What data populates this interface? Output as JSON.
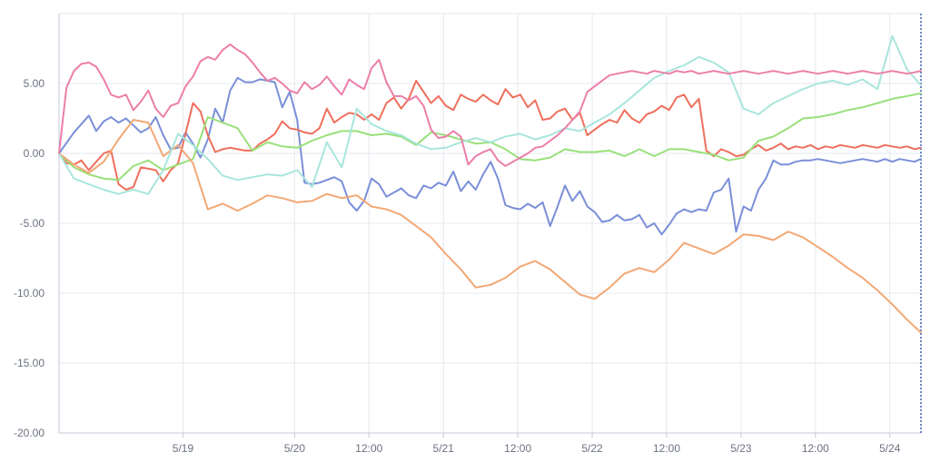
{
  "chart_data": {
    "type": "line",
    "title": "",
    "xlabel": "",
    "ylabel": "",
    "ylim": [
      -20,
      10
    ],
    "y_ticks": [
      "5.00",
      "0.00",
      "-5.00",
      "-10.00",
      "-15.00",
      "-20.00"
    ],
    "y_tick_values": [
      5,
      0,
      -5,
      -10,
      -15,
      -20
    ],
    "x_tick_labels": [
      "5/19",
      "5/20",
      "12:00",
      "5/21",
      "12:00",
      "5/22",
      "12:00",
      "5/23",
      "12:00",
      "5/24"
    ],
    "x_tick_values": [
      0.833,
      1.583,
      2.083,
      2.583,
      3.083,
      3.583,
      4.083,
      4.583,
      5.083,
      5.583
    ],
    "xlim": [
      0,
      5.792
    ],
    "grid": true,
    "legend": "none",
    "series": [
      {
        "color": "#7a8fd8",
        "x": [
          0,
          0.1,
          0.2,
          0.25,
          0.3,
          0.35,
          0.4,
          0.45,
          0.5,
          0.55,
          0.6,
          0.65,
          0.7,
          0.75,
          0.8,
          0.85,
          0.9,
          0.95,
          1.0,
          1.05,
          1.1,
          1.15,
          1.2,
          1.25,
          1.3,
          1.35,
          1.4,
          1.45,
          1.5,
          1.55,
          1.6,
          1.65,
          1.7,
          1.75,
          1.8,
          1.85,
          1.9,
          1.95,
          2.0,
          2.05,
          2.1,
          2.15,
          2.2,
          2.25,
          2.3,
          2.35,
          2.4,
          2.45,
          2.5,
          2.55,
          2.6,
          2.65,
          2.7,
          2.75,
          2.8,
          2.85,
          2.9,
          2.95,
          3.0,
          3.05,
          3.1,
          3.15,
          3.2,
          3.25,
          3.3,
          3.35,
          3.4,
          3.45,
          3.5,
          3.55,
          3.6,
          3.65,
          3.7,
          3.75,
          3.8,
          3.85,
          3.9,
          3.95,
          4.0,
          4.05,
          4.1,
          4.15,
          4.2,
          4.25,
          4.3,
          4.35,
          4.4,
          4.45,
          4.5,
          4.55,
          4.6,
          4.65,
          4.7,
          4.75,
          4.8,
          4.85,
          4.9,
          4.95,
          5.0,
          5.05,
          5.1,
          5.15,
          5.2,
          5.25,
          5.3,
          5.35,
          5.4,
          5.45,
          5.5,
          5.55,
          5.6,
          5.65,
          5.7,
          5.75,
          5.79
        ],
        "y": [
          0,
          1.5,
          2.7,
          1.6,
          2.3,
          2.6,
          2.2,
          2.5,
          2.0,
          1.5,
          1.8,
          2.6,
          1.3,
          0.3,
          0.4,
          1.5,
          0.7,
          -0.3,
          1.0,
          3.2,
          2.2,
          4.5,
          5.4,
          5.1,
          5.1,
          5.3,
          5.2,
          5.1,
          3.3,
          4.4,
          2.4,
          -2.1,
          -2.2,
          -2.1,
          -1.9,
          -1.7,
          -2.0,
          -3.5,
          -4.1,
          -3.4,
          -1.8,
          -2.2,
          -3.1,
          -2.8,
          -2.5,
          -3.0,
          -3.2,
          -2.3,
          -2.5,
          -2.1,
          -2.3,
          -1.3,
          -2.7,
          -2.0,
          -2.6,
          -1.5,
          -0.6,
          -1.8,
          -3.7,
          -3.9,
          -4.0,
          -3.6,
          -3.9,
          -3.5,
          -5.2,
          -3.8,
          -2.3,
          -3.4,
          -2.7,
          -3.8,
          -4.2,
          -4.9,
          -4.8,
          -4.4,
          -4.8,
          -4.7,
          -4.4,
          -5.3,
          -5.0,
          -5.8,
          -5.1,
          -4.3,
          -4.0,
          -4.2,
          -4.0,
          -4.1,
          -2.8,
          -2.6,
          -1.8,
          -5.6,
          -3.8,
          -4.1,
          -2.6,
          -1.8,
          -0.5,
          -0.8,
          -0.8,
          -0.6,
          -0.5,
          -0.5,
          -0.4,
          -0.5,
          -0.6,
          -0.7,
          -0.6,
          -0.5,
          -0.4,
          -0.5,
          -0.6,
          -0.4,
          -0.6,
          -0.4,
          -0.5,
          -0.6,
          -0.4
        ]
      },
      {
        "color": "#ee6f5c",
        "x": [
          0,
          0.05,
          0.1,
          0.15,
          0.2,
          0.25,
          0.3,
          0.35,
          0.4,
          0.45,
          0.5,
          0.55,
          0.6,
          0.65,
          0.7,
          0.75,
          0.8,
          0.85,
          0.9,
          0.95,
          1.0,
          1.05,
          1.1,
          1.15,
          1.2,
          1.25,
          1.3,
          1.35,
          1.4,
          1.45,
          1.5,
          1.55,
          1.6,
          1.65,
          1.7,
          1.75,
          1.8,
          1.85,
          1.9,
          1.95,
          2.0,
          2.05,
          2.1,
          2.15,
          2.2,
          2.25,
          2.3,
          2.35,
          2.4,
          2.45,
          2.5,
          2.55,
          2.6,
          2.65,
          2.7,
          2.75,
          2.8,
          2.85,
          2.9,
          2.95,
          3.0,
          3.05,
          3.1,
          3.15,
          3.2,
          3.25,
          3.3,
          3.35,
          3.4,
          3.45,
          3.5,
          3.55,
          3.6,
          3.65,
          3.7,
          3.75,
          3.8,
          3.85,
          3.9,
          3.95,
          4.0,
          4.05,
          4.1,
          4.15,
          4.2,
          4.25,
          4.3,
          4.35,
          4.4,
          4.45,
          4.5,
          4.55,
          4.6,
          4.65,
          4.7,
          4.75,
          4.8,
          4.85,
          4.9,
          4.95,
          5.0,
          5.05,
          5.1,
          5.15,
          5.2,
          5.25,
          5.3,
          5.35,
          5.4,
          5.45,
          5.5,
          5.55,
          5.6,
          5.65,
          5.7,
          5.75,
          5.79
        ],
        "y": [
          0,
          -0.7,
          -0.8,
          -0.5,
          -1.2,
          -0.6,
          0.0,
          0.2,
          -2.2,
          -2.6,
          -2.4,
          -1.0,
          -1.1,
          -1.2,
          -2.0,
          -1.2,
          -0.7,
          1.4,
          3.6,
          3.0,
          1.3,
          0.1,
          0.3,
          0.4,
          0.3,
          0.2,
          0.2,
          0.7,
          1.0,
          1.4,
          2.3,
          1.8,
          1.7,
          1.5,
          1.4,
          1.8,
          3.2,
          2.2,
          2.6,
          2.9,
          2.8,
          2.4,
          2.8,
          2.4,
          3.6,
          4.0,
          3.2,
          3.9,
          5.2,
          4.4,
          3.6,
          4.1,
          3.4,
          3.1,
          4.2,
          3.9,
          3.7,
          4.2,
          3.8,
          3.5,
          4.6,
          4.0,
          4.2,
          3.3,
          3.8,
          2.4,
          2.5,
          3.0,
          3.2,
          2.4,
          2.9,
          1.3,
          1.7,
          2.1,
          2.4,
          2.2,
          3.1,
          2.5,
          2.2,
          2.8,
          3.0,
          3.4,
          3.1,
          4.0,
          4.2,
          3.3,
          3.9,
          0.2,
          -0.2,
          0.3,
          0.1,
          -0.2,
          -0.1,
          0.3,
          0.6,
          0.2,
          0.4,
          0.7,
          0.3,
          0.5,
          0.4,
          0.6,
          0.3,
          0.5,
          0.4,
          0.6,
          0.5,
          0.4,
          0.6,
          0.5,
          0.4,
          0.6,
          0.5,
          0.4,
          0.5,
          0.3,
          0.4
        ]
      },
      {
        "color": "#99e07a",
        "x": [
          0,
          0.1,
          0.2,
          0.3,
          0.4,
          0.5,
          0.6,
          0.7,
          0.8,
          0.9,
          1.0,
          1.1,
          1.2,
          1.3,
          1.4,
          1.5,
          1.6,
          1.7,
          1.8,
          1.9,
          2.0,
          2.1,
          2.2,
          2.3,
          2.4,
          2.5,
          2.6,
          2.7,
          2.8,
          2.9,
          3.0,
          3.1,
          3.2,
          3.3,
          3.4,
          3.5,
          3.6,
          3.7,
          3.8,
          3.9,
          4.0,
          4.1,
          4.2,
          4.3,
          4.4,
          4.5,
          4.6,
          4.7,
          4.8,
          4.9,
          5.0,
          5.1,
          5.2,
          5.3,
          5.4,
          5.5,
          5.6,
          5.7,
          5.79
        ],
        "y": [
          0,
          -1.0,
          -1.5,
          -1.8,
          -1.9,
          -0.9,
          -0.5,
          -1.2,
          -0.8,
          -0.4,
          2.6,
          2.2,
          1.8,
          0.2,
          0.8,
          0.5,
          0.4,
          0.9,
          1.3,
          1.6,
          1.6,
          1.3,
          1.4,
          1.2,
          0.6,
          1.5,
          1.3,
          1.0,
          0.7,
          0.8,
          0.3,
          -0.4,
          -0.5,
          -0.3,
          0.3,
          0.1,
          0.1,
          0.2,
          -0.2,
          0.3,
          -0.2,
          0.3,
          0.3,
          0.1,
          -0.1,
          -0.5,
          -0.3,
          0.9,
          1.2,
          1.8,
          2.5,
          2.6,
          2.8,
          3.1,
          3.3,
          3.6,
          3.9,
          4.1,
          4.3
        ]
      },
      {
        "color": "#f2a875",
        "x": [
          0,
          0.1,
          0.2,
          0.3,
          0.4,
          0.5,
          0.6,
          0.7,
          0.8,
          0.9,
          1.0,
          1.1,
          1.2,
          1.3,
          1.4,
          1.5,
          1.6,
          1.7,
          1.8,
          1.9,
          2.0,
          2.1,
          2.2,
          2.3,
          2.4,
          2.5,
          2.6,
          2.7,
          2.8,
          2.9,
          3.0,
          3.1,
          3.2,
          3.3,
          3.4,
          3.5,
          3.6,
          3.7,
          3.8,
          3.9,
          4.0,
          4.1,
          4.2,
          4.3,
          4.4,
          4.5,
          4.6,
          4.7,
          4.8,
          4.9,
          5.0,
          5.1,
          5.2,
          5.3,
          5.4,
          5.5,
          5.6,
          5.7,
          5.79
        ],
        "y": [
          0,
          -0.8,
          -1.4,
          -0.6,
          1.0,
          2.4,
          2.2,
          -0.2,
          0.6,
          -0.7,
          -4.0,
          -3.6,
          -4.1,
          -3.6,
          -3.0,
          -3.2,
          -3.5,
          -3.4,
          -2.9,
          -3.2,
          -3.0,
          -3.8,
          -4.0,
          -4.4,
          -5.2,
          -6.0,
          -7.2,
          -8.3,
          -9.6,
          -9.4,
          -8.9,
          -8.1,
          -7.7,
          -8.3,
          -9.2,
          -10.1,
          -10.4,
          -9.6,
          -8.6,
          -8.2,
          -8.5,
          -7.6,
          -6.4,
          -6.8,
          -7.2,
          -6.6,
          -5.8,
          -5.9,
          -6.2,
          -5.6,
          -6.0,
          -6.7,
          -7.4,
          -8.2,
          -8.9,
          -9.8,
          -10.8,
          -11.9,
          -12.8
        ]
      },
      {
        "color": "#a8e6dc",
        "x": [
          0,
          0.1,
          0.2,
          0.3,
          0.4,
          0.5,
          0.6,
          0.7,
          0.8,
          0.9,
          1.0,
          1.1,
          1.2,
          1.3,
          1.4,
          1.5,
          1.6,
          1.7,
          1.8,
          1.9,
          2.0,
          2.1,
          2.2,
          2.3,
          2.4,
          2.5,
          2.6,
          2.7,
          2.8,
          2.9,
          3.0,
          3.1,
          3.2,
          3.3,
          3.4,
          3.5,
          3.6,
          3.7,
          3.8,
          3.9,
          4.0,
          4.1,
          4.2,
          4.3,
          4.4,
          4.5,
          4.6,
          4.7,
          4.8,
          4.9,
          5.0,
          5.1,
          5.2,
          5.3,
          5.4,
          5.5,
          5.6,
          5.7,
          5.79
        ],
        "y": [
          0,
          -1.8,
          -2.2,
          -2.6,
          -2.9,
          -2.6,
          -2.9,
          -1.2,
          1.4,
          0.6,
          -0.4,
          -1.6,
          -1.9,
          -1.7,
          -1.5,
          -1.6,
          -1.2,
          -2.4,
          0.8,
          -1.0,
          3.2,
          2.1,
          1.6,
          1.3,
          0.7,
          0.3,
          0.4,
          0.8,
          1.1,
          0.8,
          1.2,
          1.4,
          1.0,
          1.3,
          1.8,
          1.6,
          2.2,
          2.8,
          3.6,
          4.5,
          5.4,
          5.9,
          6.3,
          6.9,
          6.5,
          5.8,
          3.2,
          2.8,
          3.6,
          4.1,
          4.6,
          5.0,
          5.2,
          4.9,
          5.3,
          4.6,
          8.4,
          6.0,
          4.9
        ]
      },
      {
        "color": "#ec7ea8",
        "x": [
          0,
          0.05,
          0.1,
          0.15,
          0.2,
          0.25,
          0.3,
          0.35,
          0.4,
          0.45,
          0.5,
          0.55,
          0.6,
          0.65,
          0.7,
          0.75,
          0.8,
          0.85,
          0.9,
          0.95,
          1.0,
          1.05,
          1.1,
          1.15,
          1.2,
          1.25,
          1.3,
          1.35,
          1.4,
          1.45,
          1.5,
          1.55,
          1.6,
          1.65,
          1.7,
          1.75,
          1.8,
          1.85,
          1.9,
          1.95,
          2.0,
          2.05,
          2.1,
          2.15,
          2.2,
          2.25,
          2.3,
          2.35,
          2.4,
          2.45,
          2.5,
          2.55,
          2.6,
          2.65,
          2.7,
          2.75,
          2.8,
          2.85,
          2.9,
          2.95,
          3.0,
          3.05,
          3.1,
          3.15,
          3.2,
          3.25,
          3.3,
          3.35,
          3.4,
          3.45,
          3.5,
          3.55,
          3.6,
          3.65,
          3.7,
          3.75,
          3.8,
          3.85,
          3.9,
          3.95,
          4.0,
          4.05,
          4.1,
          4.15,
          4.2,
          4.25,
          4.3,
          4.35,
          4.4,
          4.45,
          4.5,
          4.55,
          4.6,
          4.65,
          4.7,
          4.75,
          4.8,
          4.85,
          4.9,
          4.95,
          5.0,
          5.05,
          5.1,
          5.15,
          5.2,
          5.25,
          5.3,
          5.35,
          5.4,
          5.45,
          5.5,
          5.55,
          5.6,
          5.65,
          5.7,
          5.75,
          5.79
        ],
        "y": [
          0,
          4.7,
          5.9,
          6.4,
          6.5,
          6.2,
          5.3,
          4.2,
          4.0,
          4.2,
          3.1,
          3.7,
          4.5,
          3.2,
          2.6,
          3.4,
          3.6,
          4.8,
          5.5,
          6.6,
          6.9,
          6.7,
          7.4,
          7.8,
          7.4,
          7.1,
          6.5,
          5.8,
          5.2,
          5.4,
          5.0,
          4.5,
          4.3,
          5.1,
          4.6,
          4.9,
          5.5,
          4.8,
          4.2,
          5.3,
          4.9,
          4.6,
          6.1,
          6.7,
          5.1,
          4.1,
          4.1,
          3.8,
          4.1,
          3.4,
          1.7,
          1.1,
          1.2,
          1.6,
          1.2,
          -0.8,
          -0.2,
          0.1,
          0.3,
          -0.5,
          -0.9,
          -0.6,
          -0.3,
          0.0,
          0.4,
          0.5,
          0.9,
          1.3,
          1.8,
          2.4,
          3.0,
          4.4,
          4.8,
          5.2,
          5.6,
          5.7,
          5.8,
          5.9,
          5.8,
          5.7,
          5.9,
          5.8,
          5.7,
          5.9,
          5.8,
          5.9,
          5.7,
          5.8,
          5.9,
          5.8,
          5.7,
          5.8,
          5.9,
          5.8,
          5.7,
          5.8,
          5.9,
          5.8,
          5.7,
          5.8,
          5.9,
          5.8,
          5.7,
          5.8,
          5.9,
          5.8,
          5.7,
          5.8,
          5.9,
          5.8,
          5.7,
          5.8,
          5.9,
          5.8,
          5.7,
          5.8,
          5.9
        ]
      }
    ]
  }
}
